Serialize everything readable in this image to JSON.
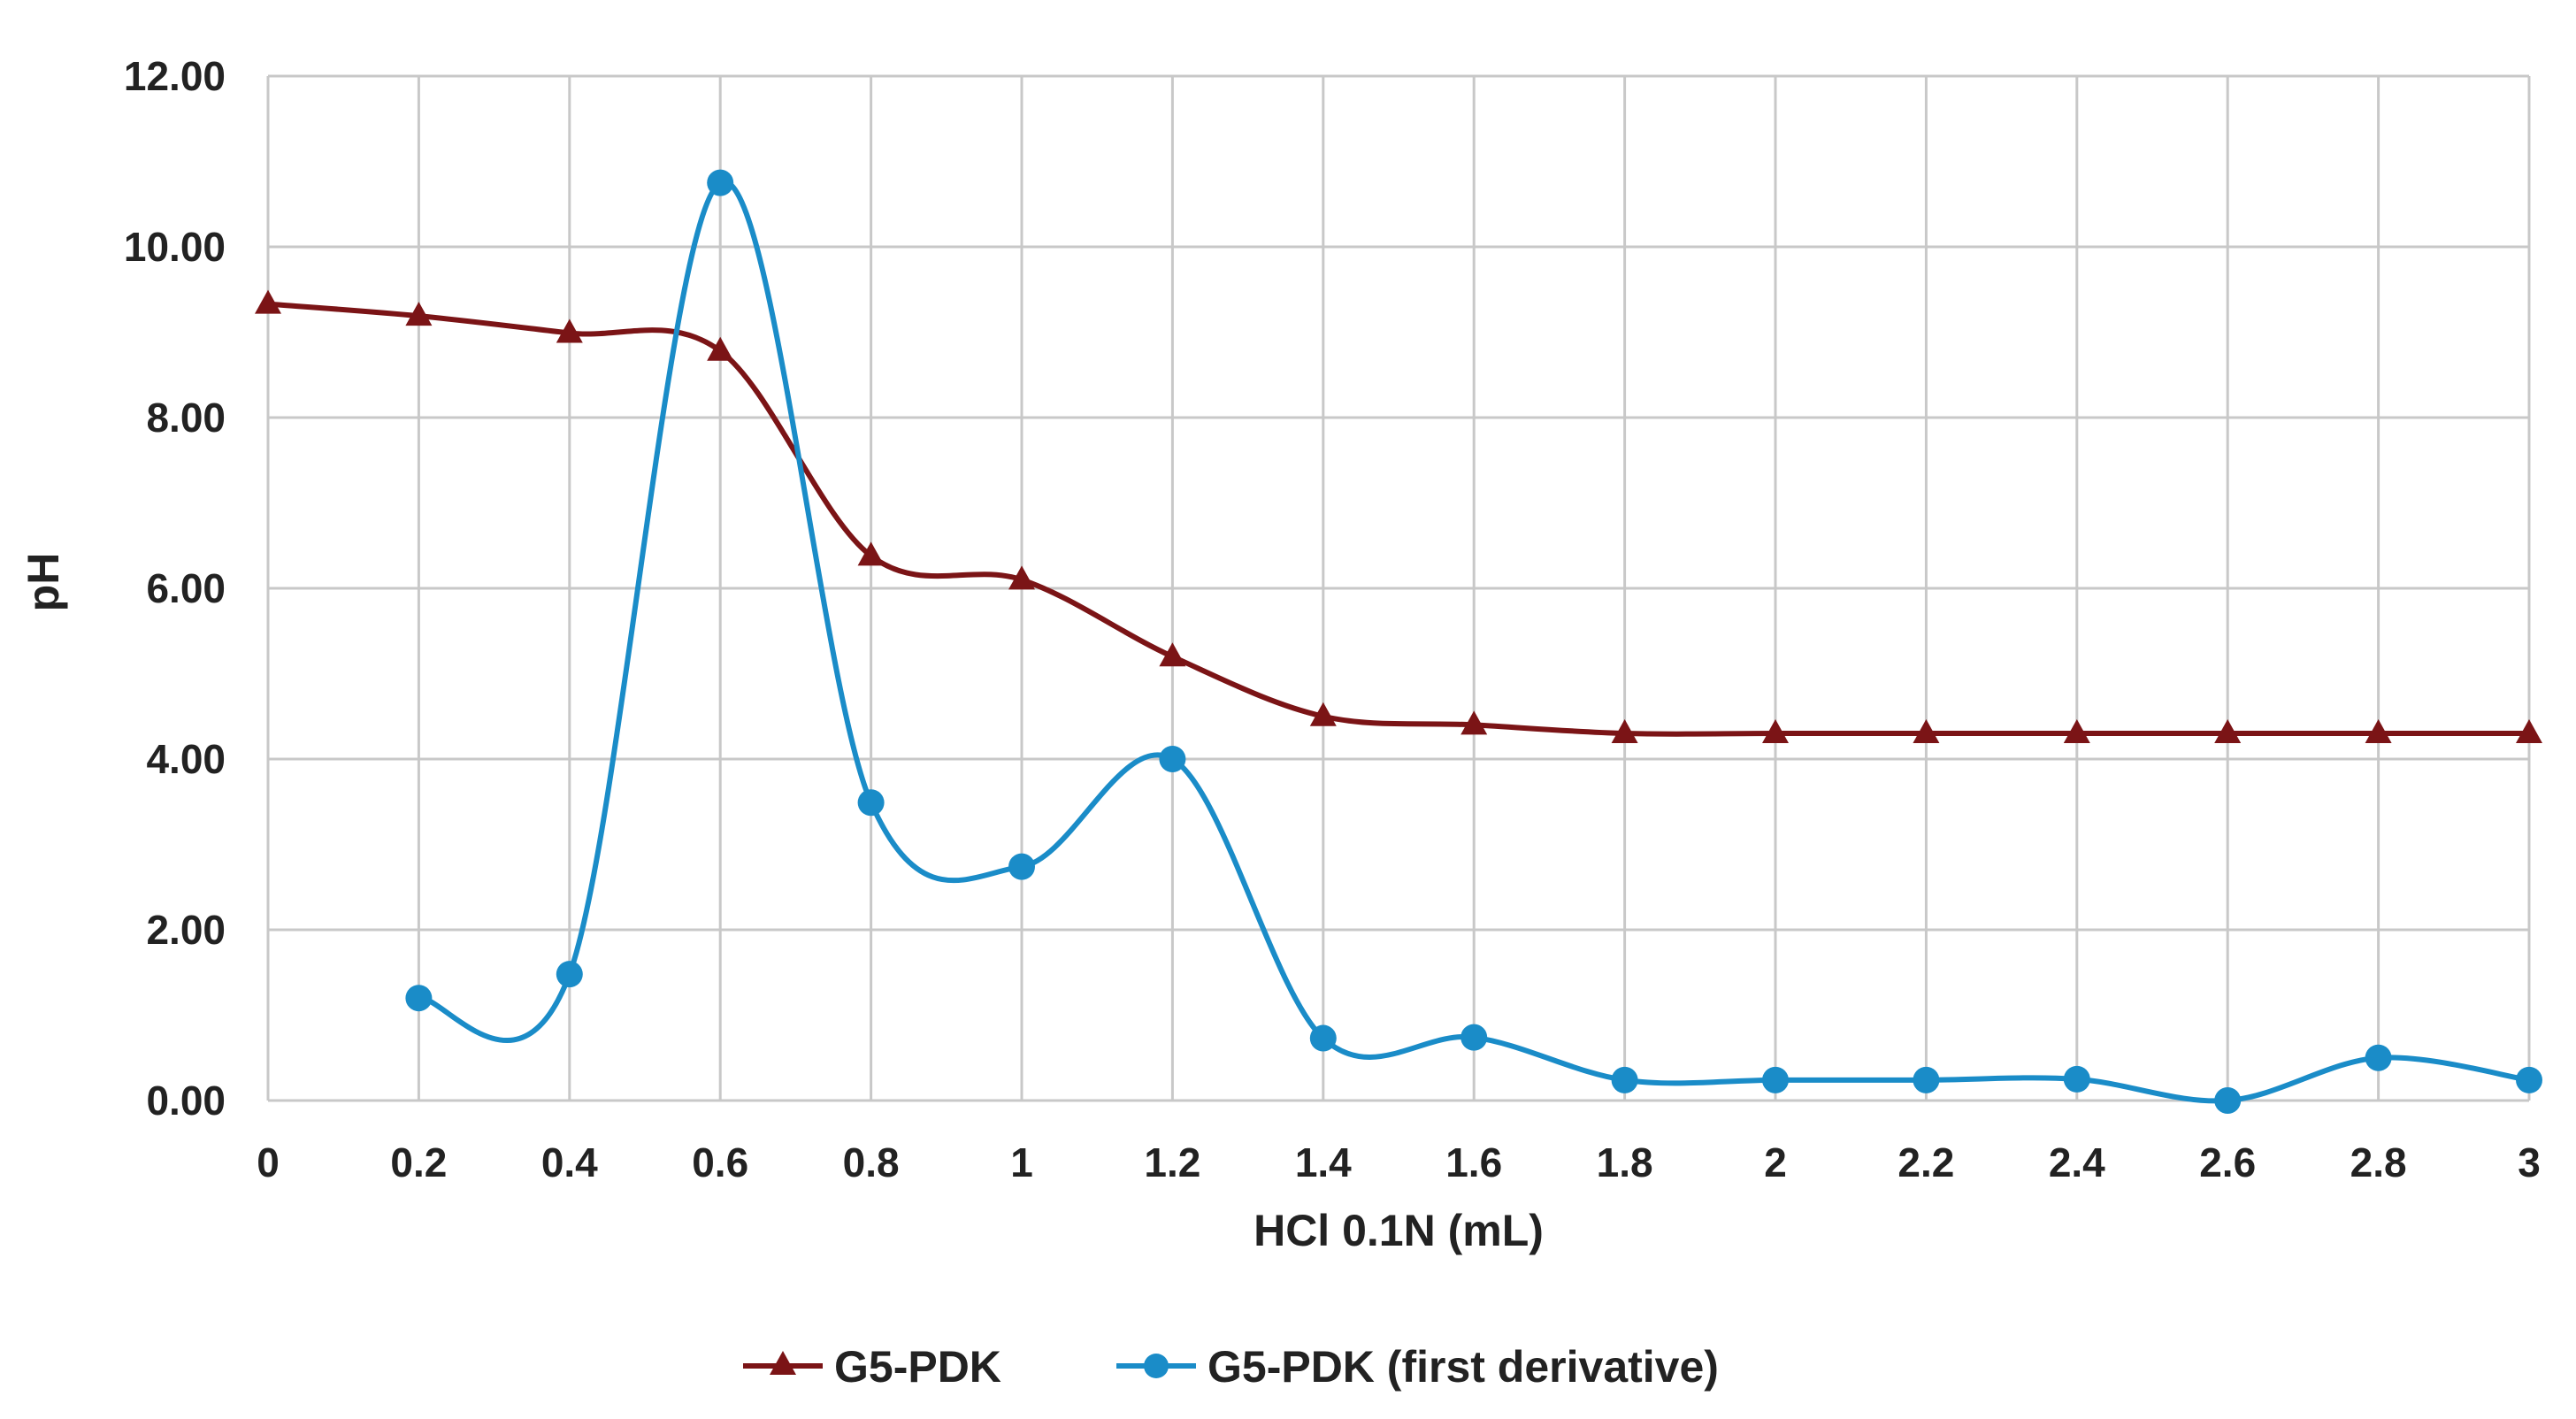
{
  "chart_data": {
    "type": "line",
    "title": "",
    "xlabel": "HCl 0.1N (mL)",
    "ylabel": "pH",
    "x_ticks": [
      "0",
      "0.2",
      "0.4",
      "0.6",
      "0.8",
      "1",
      "1.2",
      "1.4",
      "1.6",
      "1.8",
      "2",
      "2.2",
      "2.4",
      "2.6",
      "2.8",
      "3"
    ],
    "y_ticks": [
      "0.00",
      "2.00",
      "4.00",
      "6.00",
      "8.00",
      "10.00",
      "12.00"
    ],
    "xlim": [
      0,
      3
    ],
    "ylim": [
      0,
      12
    ],
    "grid": true,
    "legend_position": "bottom",
    "series": [
      {
        "name": "G5-PDK",
        "color": "#7B1416",
        "marker": "triangle",
        "x": [
          0,
          0.2,
          0.4,
          0.6,
          0.8,
          1,
          1.2,
          1.4,
          1.6,
          1.8,
          2,
          2.2,
          2.4,
          2.6,
          2.8,
          3
        ],
        "y": [
          9.33,
          9.19,
          8.99,
          8.78,
          6.38,
          6.1,
          5.2,
          4.5,
          4.4,
          4.3,
          4.3,
          4.3,
          4.3,
          4.3,
          4.3,
          4.3
        ]
      },
      {
        "name": "G5-PDK (first derivative)",
        "color": "#1A8CC8",
        "marker": "circle",
        "x": [
          0.2,
          0.4,
          0.6,
          0.8,
          1,
          1.2,
          1.4,
          1.6,
          1.8,
          2,
          2.2,
          2.4,
          2.6,
          2.8,
          3
        ],
        "y": [
          1.2,
          1.48,
          10.75,
          3.49,
          2.74,
          4.0,
          0.73,
          0.74,
          0.24,
          0.24,
          0.24,
          0.25,
          0.0,
          0.5,
          0.24
        ]
      }
    ]
  }
}
